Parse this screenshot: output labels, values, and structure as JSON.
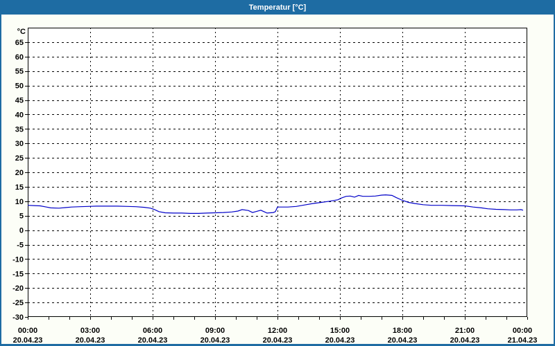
{
  "window": {
    "title": "Temperatur [°C]"
  },
  "chart_data": {
    "type": "line",
    "title": "Temperatur [°C]",
    "legend": "none",
    "grid": "dashed",
    "colors": {
      "titlebar": "#1e6ca3",
      "window_border": "#1e6ca3",
      "window_bg": "#fcfef7",
      "plot_bg": "#ffffff",
      "grid": "#000000",
      "axis": "#000000",
      "line": "#0000c8",
      "title_text": "#ffffff"
    },
    "y_axis": {
      "unit": "°C",
      "min": -30,
      "max": 70,
      "tick_step": 5,
      "tick_labels": [
        65,
        60,
        55,
        50,
        45,
        40,
        35,
        30,
        25,
        20,
        15,
        10,
        5,
        0,
        -5,
        -10,
        -15,
        -20,
        -25,
        -30
      ]
    },
    "x_axis": {
      "hours_span": 24,
      "gridline_step_hours": 3,
      "minor_tick_step_hours": 1,
      "labels": [
        {
          "hour": 0,
          "time": "00:00",
          "date": "20.04.23"
        },
        {
          "hour": 3,
          "time": "03:00",
          "date": "20.04.23"
        },
        {
          "hour": 6,
          "time": "06:00",
          "date": "20.04.23"
        },
        {
          "hour": 9,
          "time": "09:00",
          "date": "20.04.23"
        },
        {
          "hour": 12,
          "time": "12:00",
          "date": "20.04.23"
        },
        {
          "hour": 15,
          "time": "15:00",
          "date": "20.04.23"
        },
        {
          "hour": 18,
          "time": "18:00",
          "date": "20.04.23"
        },
        {
          "hour": 21,
          "time": "21:00",
          "date": "20.04.23"
        },
        {
          "hour": 24,
          "time": "00:00",
          "date": "21.04.23"
        }
      ]
    },
    "series": [
      {
        "name": "Temperatur",
        "color": "#0000c8",
        "points": [
          [
            0,
            8.6
          ],
          [
            0.3,
            8.5
          ],
          [
            0.6,
            8.4
          ],
          [
            0.9,
            8.0
          ],
          [
            1.1,
            7.7
          ],
          [
            1.5,
            7.6
          ],
          [
            1.8,
            7.8
          ],
          [
            2.1,
            8.0
          ],
          [
            2.5,
            8.1
          ],
          [
            2.9,
            8.2
          ],
          [
            3.3,
            8.3
          ],
          [
            3.8,
            8.3
          ],
          [
            4.3,
            8.3
          ],
          [
            4.8,
            8.2
          ],
          [
            5.2,
            8.1
          ],
          [
            5.6,
            7.9
          ],
          [
            5.9,
            7.6
          ],
          [
            6.1,
            7.1
          ],
          [
            6.3,
            6.4
          ],
          [
            6.6,
            6.0
          ],
          [
            7.0,
            5.9
          ],
          [
            7.4,
            5.9
          ],
          [
            7.8,
            5.8
          ],
          [
            8.2,
            5.8
          ],
          [
            8.6,
            5.9
          ],
          [
            9.0,
            6.0
          ],
          [
            9.4,
            6.1
          ],
          [
            9.8,
            6.3
          ],
          [
            10.1,
            6.6
          ],
          [
            10.3,
            7.1
          ],
          [
            10.6,
            6.8
          ],
          [
            10.8,
            6.1
          ],
          [
            11.0,
            6.5
          ],
          [
            11.2,
            6.9
          ],
          [
            11.5,
            5.9
          ],
          [
            11.8,
            6.1
          ],
          [
            11.9,
            6.4
          ],
          [
            12.0,
            8.0
          ],
          [
            12.5,
            8.0
          ],
          [
            12.9,
            8.2
          ],
          [
            13.3,
            8.7
          ],
          [
            13.7,
            9.2
          ],
          [
            14.1,
            9.6
          ],
          [
            14.5,
            10.0
          ],
          [
            14.9,
            10.5
          ],
          [
            15.1,
            11.2
          ],
          [
            15.3,
            11.7
          ],
          [
            15.5,
            11.8
          ],
          [
            15.7,
            11.4
          ],
          [
            15.9,
            12.0
          ],
          [
            16.1,
            11.7
          ],
          [
            16.4,
            11.7
          ],
          [
            16.7,
            11.8
          ],
          [
            17.0,
            12.1
          ],
          [
            17.2,
            12.2
          ],
          [
            17.5,
            12.0
          ],
          [
            17.7,
            11.3
          ],
          [
            18.0,
            10.3
          ],
          [
            18.3,
            9.6
          ],
          [
            18.6,
            9.2
          ],
          [
            19.0,
            8.8
          ],
          [
            19.4,
            8.6
          ],
          [
            19.9,
            8.6
          ],
          [
            20.4,
            8.5
          ],
          [
            21.0,
            8.4
          ],
          [
            21.4,
            8.0
          ],
          [
            21.8,
            7.7
          ],
          [
            22.1,
            7.4
          ],
          [
            22.5,
            7.2
          ],
          [
            22.9,
            7.1
          ],
          [
            23.2,
            7.0
          ],
          [
            23.5,
            7.0
          ],
          [
            23.7,
            7.1
          ],
          [
            23.8,
            6.9
          ]
        ]
      }
    ]
  }
}
